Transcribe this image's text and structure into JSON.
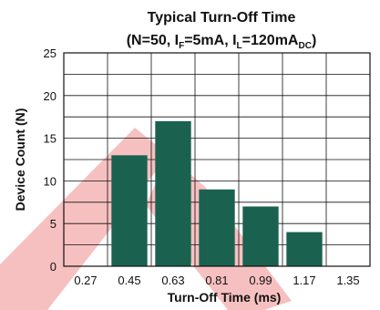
{
  "chart_data": {
    "type": "bar",
    "title": "Typical Turn-Off Time",
    "subtitle": {
      "open": "(N=50, I",
      "sub_f": "F",
      "mid1": "=5mA, I",
      "sub_l": "L",
      "mid2": "=120mA",
      "sub_dc": "DC",
      "close": ")"
    },
    "xlabel": "Turn-Off Time (ms)",
    "ylabel": "Device Count (N)",
    "categories": [
      "0.27",
      "0.45",
      "0.63",
      "0.81",
      "0.99",
      "1.17",
      "1.35"
    ],
    "values": [
      0,
      13,
      17,
      9,
      7,
      4,
      0
    ],
    "ylim": [
      0,
      25
    ],
    "y_ticks": [
      "0",
      "5",
      "10",
      "15",
      "20",
      "25"
    ],
    "grid": true,
    "bar_color": "#1a6150",
    "watermark_color": "#f08c8c"
  }
}
